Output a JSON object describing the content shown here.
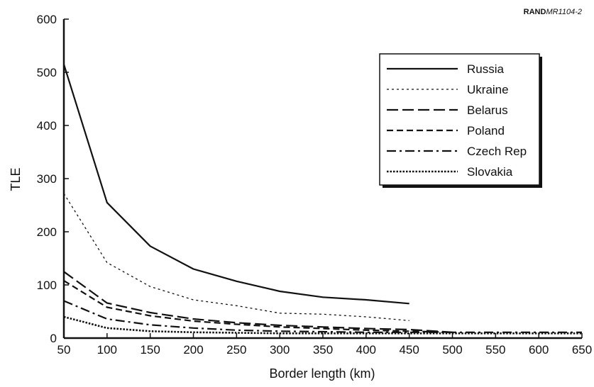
{
  "credit": {
    "prefix": "RAND",
    "suffix": "MR1104-2"
  },
  "chart_data": {
    "type": "line",
    "xlabel": "Border length (km)",
    "ylabel": "TLE",
    "xlim": [
      50,
      650
    ],
    "ylim": [
      0,
      600
    ],
    "xticks": [
      50,
      100,
      150,
      200,
      250,
      300,
      350,
      400,
      450,
      500,
      550,
      600,
      650
    ],
    "yticks": [
      0,
      100,
      200,
      300,
      400,
      500,
      600
    ],
    "grid": false,
    "legend_position": "top-right",
    "series": [
      {
        "name": "Russia",
        "style": "solid",
        "width": 2.2,
        "x": [
          50,
          100,
          150,
          200,
          250,
          300,
          350,
          400,
          450
        ],
        "y": [
          515,
          255,
          173,
          130,
          107,
          88,
          77,
          72,
          65
        ]
      },
      {
        "name": "Ukraine",
        "style": "dotted",
        "width": 1.3,
        "x": [
          50,
          100,
          150,
          200,
          250,
          300,
          350,
          400,
          450
        ],
        "y": [
          272,
          142,
          97,
          72,
          61,
          47,
          45,
          40,
          33
        ]
      },
      {
        "name": "Belarus",
        "style": "longdash",
        "width": 2.2,
        "x": [
          50,
          100,
          150,
          200,
          250,
          300,
          350,
          400,
          450,
          500
        ],
        "y": [
          125,
          66,
          48,
          36,
          29,
          24,
          21,
          18,
          16,
          11
        ]
      },
      {
        "name": "Poland",
        "style": "dash",
        "width": 2.2,
        "x": [
          50,
          100,
          150,
          200,
          250,
          300,
          350,
          400,
          450,
          500
        ],
        "y": [
          108,
          58,
          42,
          32,
          26,
          21,
          18,
          15,
          13,
          11
        ]
      },
      {
        "name": "Czech Rep",
        "style": "dashdot",
        "width": 2.2,
        "x": [
          50,
          100,
          150,
          200,
          250,
          300,
          350,
          400,
          450,
          500,
          550,
          600,
          650
        ],
        "y": [
          70,
          36,
          25,
          19,
          15,
          13,
          12,
          11,
          11,
          11,
          11,
          11,
          11
        ]
      },
      {
        "name": "Slovakia",
        "style": "densedot",
        "width": 2.6,
        "x": [
          50,
          100,
          150,
          200,
          250,
          300,
          350,
          400,
          450,
          500,
          550,
          600,
          650
        ],
        "y": [
          40,
          19,
          13,
          11,
          10,
          9,
          9,
          9,
          9,
          9,
          9,
          9,
          9
        ]
      }
    ]
  }
}
